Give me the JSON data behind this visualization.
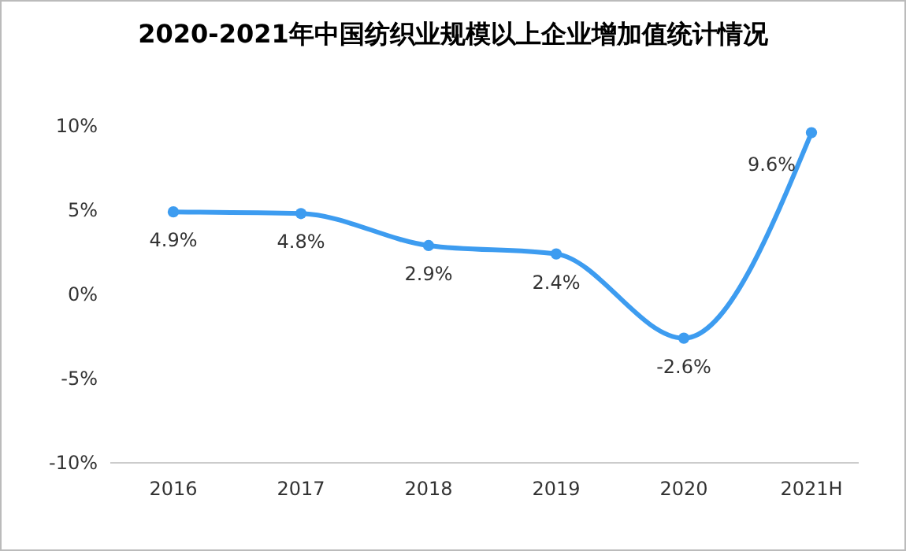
{
  "chart_data": {
    "type": "line",
    "title": "2020-2021年中国纺织业规模以上企业增加值统计情况",
    "categories": [
      "2016",
      "2017",
      "2018",
      "2019",
      "2020",
      "2021H"
    ],
    "series": [
      {
        "color": "#3d9cf0",
        "values": [
          4.9,
          4.8,
          2.9,
          2.4,
          -2.6,
          9.6
        ],
        "value_labels": [
          "4.9%",
          "4.8%",
          "2.9%",
          "2.4%",
          "-2.6%",
          "9.6%"
        ]
      }
    ],
    "ylim": [
      -10,
      10
    ],
    "yticks": [
      {
        "value": -10,
        "label": "-10%"
      },
      {
        "value": -5,
        "label": "-5%"
      },
      {
        "value": 0,
        "label": "0%"
      },
      {
        "value": 5,
        "label": "5%"
      },
      {
        "value": 10,
        "label": "10%"
      }
    ],
    "grid": false,
    "marker": "circle",
    "line_style": "solid"
  }
}
